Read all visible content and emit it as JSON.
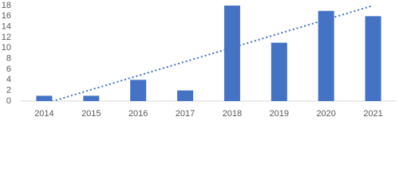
{
  "chart_data": {
    "type": "bar",
    "categories": [
      "2014",
      "2015",
      "2016",
      "2017",
      "2018",
      "2019",
      "2020",
      "2021"
    ],
    "values": [
      1,
      1,
      4,
      2,
      18,
      11,
      17,
      16
    ],
    "color": "#4472c4",
    "ylim": [
      0,
      18
    ],
    "yticks": [
      0,
      2,
      4,
      6,
      8,
      10,
      12,
      14,
      16,
      18
    ],
    "grid": false,
    "trendline": "linear"
  }
}
